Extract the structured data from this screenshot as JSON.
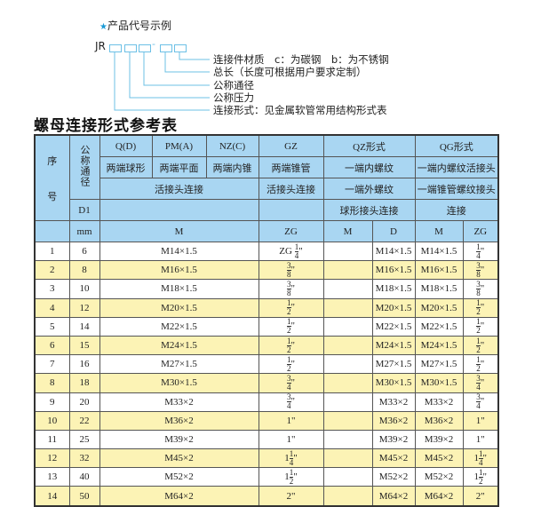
{
  "example": {
    "star": "★",
    "title": "产品代号示例",
    "prefix": "JR",
    "dash": "-",
    "labels": [
      "连接件材质　c：为碳钢　b：为不锈钢",
      "总长（长度可根据用户要求定制）",
      "公称通径",
      "公称压力",
      "连接形式：见金属软管常用结构形式表"
    ]
  },
  "table_title": "螺母连接形式参考表",
  "header": {
    "seq": "序",
    "seq2": "号",
    "dn": "公称通径",
    "d1": "D1",
    "mm": "mm",
    "q": "Q(D)",
    "pm": "PM(A)",
    "nz": "NZ(C)",
    "gz": "GZ",
    "qz": "QZ形式",
    "qg": "QG形式",
    "q2": "两端球形",
    "pm2": "两端平面",
    "nz2": "两端内锥",
    "gz2": "两端锥管",
    "qz2": "一端内螺纹",
    "qg2": "一端内螺纹活接头",
    "qpmnz3": "活接头连接",
    "gz3": "活接头连接",
    "qz3": "一端外螺纹",
    "qg3": "一端锥管螺纹接头",
    "qz4": "球形接头连接",
    "qg4": "连接",
    "m": "M",
    "zg": "ZG",
    "qzm": "M",
    "qzd": "D",
    "qgm": "M",
    "qgzg": "ZG"
  },
  "colors": {
    "header": "#a9d6f2",
    "alt_row": "#fcf3b5"
  },
  "rows": [
    {
      "no": "1",
      "dn": "6",
      "m": "M14×1.5",
      "zg": {
        "pre": "ZG",
        "w": "",
        "n": "1",
        "d": "4",
        "s": "\""
      },
      "qzm": "",
      "qzd": "M14×1.5",
      "qgm": "M14×1.5",
      "qgzg": {
        "pre": "",
        "w": "",
        "n": "1",
        "d": "4",
        "s": "\""
      }
    },
    {
      "no": "2",
      "dn": "8",
      "m": "M16×1.5",
      "zg": {
        "pre": "",
        "w": "",
        "n": "3",
        "d": "8",
        "s": "\""
      },
      "qzm": "",
      "qzd": "M16×1.5",
      "qgm": "M16×1.5",
      "qgzg": {
        "pre": "",
        "w": "",
        "n": "3",
        "d": "8",
        "s": "\""
      }
    },
    {
      "no": "3",
      "dn": "10",
      "m": "M18×1.5",
      "zg": {
        "pre": "",
        "w": "",
        "n": "3",
        "d": "8",
        "s": "\""
      },
      "qzm": "",
      "qzd": "M18×1.5",
      "qgm": "M18×1.5",
      "qgzg": {
        "pre": "",
        "w": "",
        "n": "3",
        "d": "8",
        "s": "\""
      }
    },
    {
      "no": "4",
      "dn": "12",
      "m": "M20×1.5",
      "zg": {
        "pre": "",
        "w": "",
        "n": "1",
        "d": "2",
        "s": "\""
      },
      "qzm": "",
      "qzd": "M20×1.5",
      "qgm": "M20×1.5",
      "qgzg": {
        "pre": "",
        "w": "",
        "n": "1",
        "d": "2",
        "s": "\""
      }
    },
    {
      "no": "5",
      "dn": "14",
      "m": "M22×1.5",
      "zg": {
        "pre": "",
        "w": "",
        "n": "1",
        "d": "2",
        "s": "\""
      },
      "qzm": "",
      "qzd": "M22×1.5",
      "qgm": "M22×1.5",
      "qgzg": {
        "pre": "",
        "w": "",
        "n": "1",
        "d": "2",
        "s": "\""
      }
    },
    {
      "no": "6",
      "dn": "15",
      "m": "M24×1.5",
      "zg": {
        "pre": "",
        "w": "",
        "n": "1",
        "d": "2",
        "s": "\""
      },
      "qzm": "",
      "qzd": "M24×1.5",
      "qgm": "M24×1.5",
      "qgzg": {
        "pre": "",
        "w": "",
        "n": "1",
        "d": "2",
        "s": "\""
      }
    },
    {
      "no": "7",
      "dn": "16",
      "m": "M27×1.5",
      "zg": {
        "pre": "",
        "w": "",
        "n": "1",
        "d": "2",
        "s": "\""
      },
      "qzm": "",
      "qzd": "M27×1.5",
      "qgm": "M27×1.5",
      "qgzg": {
        "pre": "",
        "w": "",
        "n": "1",
        "d": "2",
        "s": "\""
      }
    },
    {
      "no": "8",
      "dn": "18",
      "m": "M30×1.5",
      "zg": {
        "pre": "",
        "w": "",
        "n": "3",
        "d": "4",
        "s": "\""
      },
      "qzm": "",
      "qzd": "M30×1.5",
      "qgm": "M30×1.5",
      "qgzg": {
        "pre": "",
        "w": "",
        "n": "3",
        "d": "4",
        "s": "\""
      }
    },
    {
      "no": "9",
      "dn": "20",
      "m": "M33×2",
      "zg": {
        "pre": "",
        "w": "",
        "n": "3",
        "d": "4",
        "s": "\""
      },
      "qzm": "",
      "qzd": "M33×2",
      "qgm": "M33×2",
      "qgzg": {
        "pre": "",
        "w": "",
        "n": "3",
        "d": "4",
        "s": "\""
      }
    },
    {
      "no": "10",
      "dn": "22",
      "m": "M36×2",
      "zg": {
        "pre": "",
        "w": "1",
        "n": "",
        "d": "",
        "s": "\""
      },
      "qzm": "",
      "qzd": "M36×2",
      "qgm": "M36×2",
      "qgzg": {
        "pre": "",
        "w": "1",
        "n": "",
        "d": "",
        "s": "\""
      }
    },
    {
      "no": "11",
      "dn": "25",
      "m": "M39×2",
      "zg": {
        "pre": "",
        "w": "1",
        "n": "",
        "d": "",
        "s": "\""
      },
      "qzm": "",
      "qzd": "M39×2",
      "qgm": "M39×2",
      "qgzg": {
        "pre": "",
        "w": "1",
        "n": "",
        "d": "",
        "s": "\""
      }
    },
    {
      "no": "12",
      "dn": "32",
      "m": "M45×2",
      "zg": {
        "pre": "",
        "w": "1",
        "n": "1",
        "d": "4",
        "s": "\""
      },
      "qzm": "",
      "qzd": "M45×2",
      "qgm": "M45×2",
      "qgzg": {
        "pre": "",
        "w": "1",
        "n": "1",
        "d": "4",
        "s": "\""
      }
    },
    {
      "no": "13",
      "dn": "40",
      "m": "M52×2",
      "zg": {
        "pre": "",
        "w": "1",
        "n": "1",
        "d": "2",
        "s": "\""
      },
      "qzm": "",
      "qzd": "M52×2",
      "qgm": "M52×2",
      "qgzg": {
        "pre": "",
        "w": "1",
        "n": "1",
        "d": "2",
        "s": "\""
      }
    },
    {
      "no": "14",
      "dn": "50",
      "m": "M64×2",
      "zg": {
        "pre": "",
        "w": "2",
        "n": "",
        "d": "",
        "s": "\""
      },
      "qzm": "",
      "qzd": "M64×2",
      "qgm": "M64×2",
      "qgzg": {
        "pre": "",
        "w": "2",
        "n": "",
        "d": "",
        "s": "\""
      }
    }
  ]
}
